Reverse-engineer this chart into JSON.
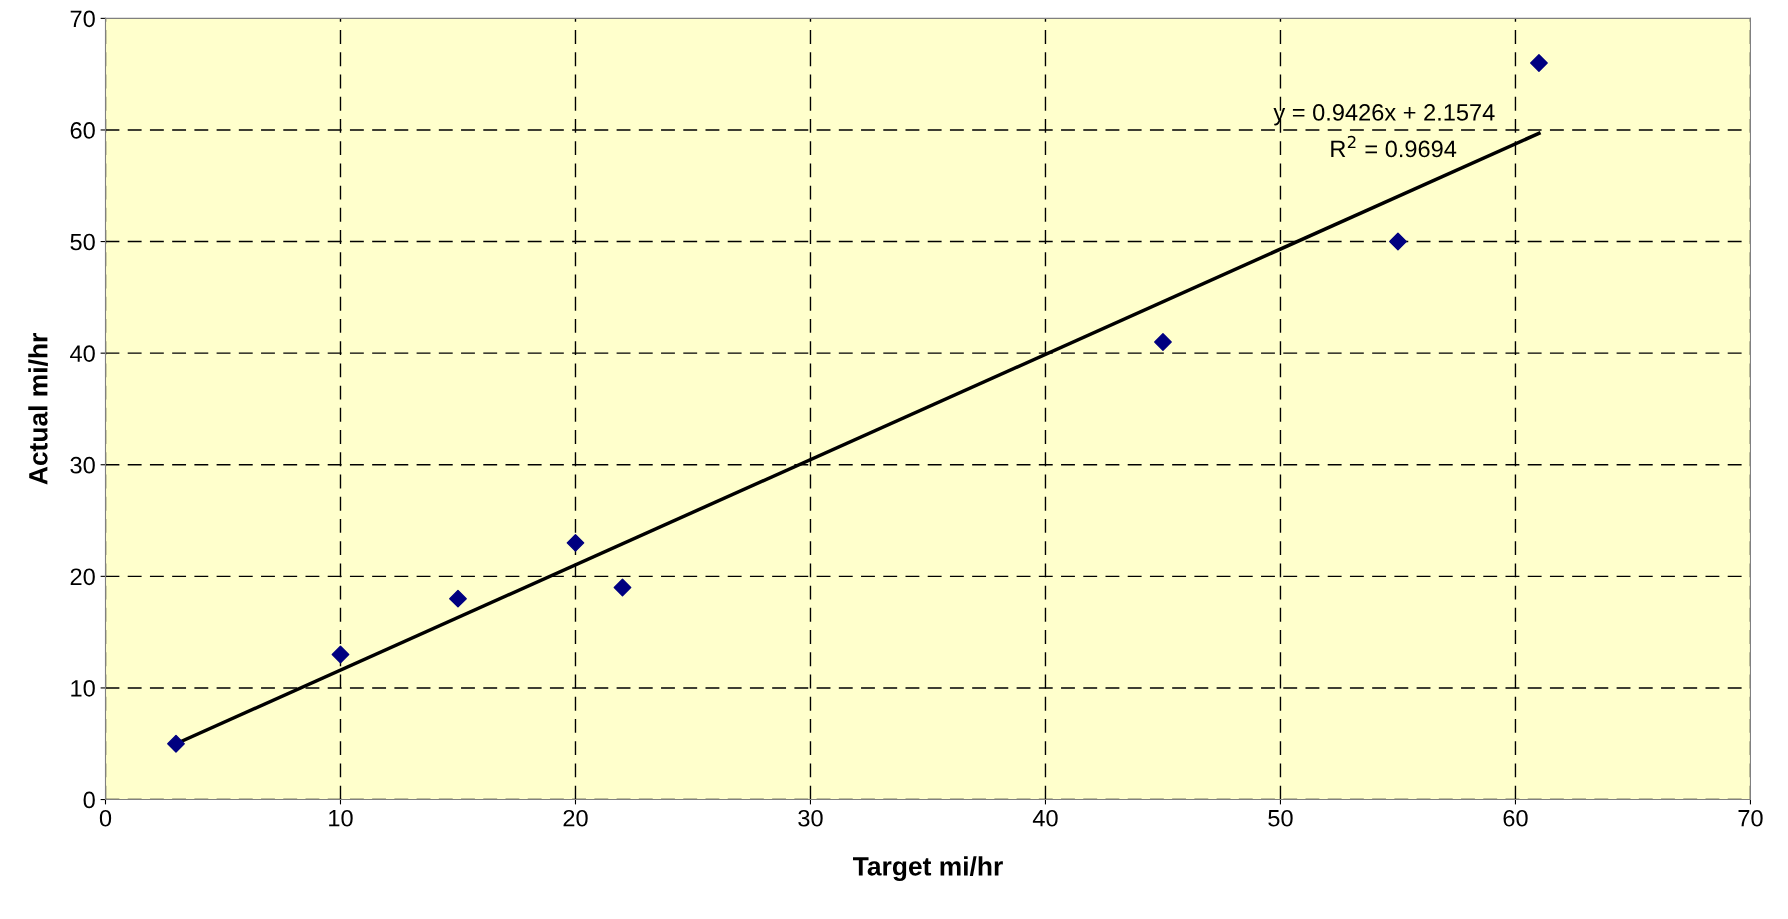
{
  "chart_data": {
    "type": "scatter",
    "xlabel": "Target mi/hr",
    "ylabel": "Actual mi/hr",
    "xlim": [
      0,
      70
    ],
    "ylim": [
      0,
      70
    ],
    "xticks": [
      0,
      10,
      20,
      30,
      40,
      50,
      60,
      70
    ],
    "yticks": [
      0,
      10,
      20,
      30,
      40,
      50,
      60,
      70
    ],
    "grid": true,
    "marker": "diamond",
    "series": [
      {
        "color": "#000080",
        "x": [
          3,
          10,
          15,
          20,
          22,
          45,
          55,
          61
        ],
        "values": [
          5,
          13,
          18,
          23,
          19,
          41,
          50,
          66
        ]
      },
      {
        "type": "line",
        "color": "#000000",
        "marker": "none",
        "line_style": "solid",
        "x": [
          3,
          61
        ],
        "values": [
          5.0,
          59.7
        ]
      }
    ],
    "annotations": [
      "y = 0.9426x + 2.1574",
      "R$^{2}$ = 0.9694"
    ]
  }
}
